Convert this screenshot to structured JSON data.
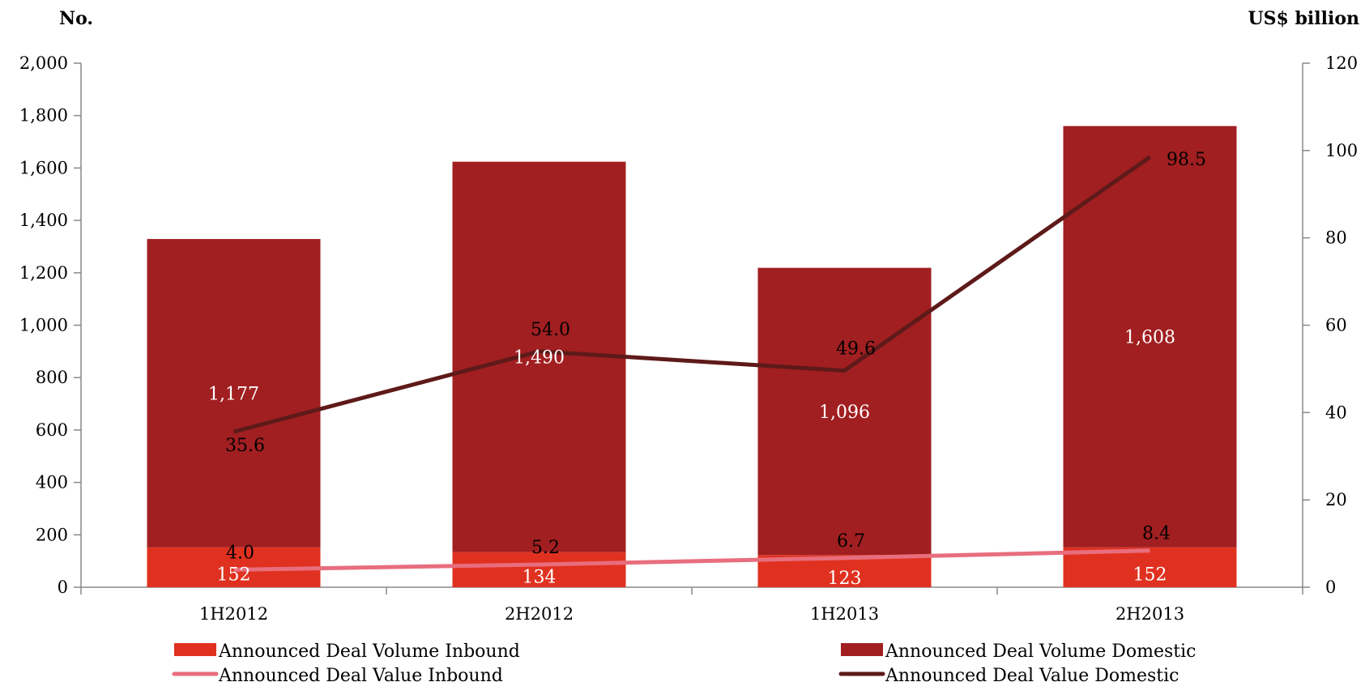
{
  "chart_data": {
    "type": "bar",
    "stacked": true,
    "categories": [
      "1H2012",
      "2H2012",
      "1H2013",
      "2H2013"
    ],
    "y_left": {
      "title": "No.",
      "ylim": [
        0,
        2000
      ],
      "ticks": [
        "0",
        "200",
        "400",
        "600",
        "800",
        "1,000",
        "1,200",
        "1,400",
        "1,600",
        "1,800",
        "2,000"
      ]
    },
    "y_right": {
      "title": "US$ billion",
      "ylim": [
        0,
        120
      ],
      "ticks": [
        "0",
        "20",
        "40",
        "60",
        "80",
        "100",
        "120"
      ]
    },
    "series": [
      {
        "name": "Announced Deal Volume Inbound",
        "type": "bar",
        "axis": "left",
        "color": "#e03120",
        "values": [
          152,
          134,
          123,
          152
        ],
        "labels": [
          "152",
          "134",
          "123",
          "152"
        ]
      },
      {
        "name": "Announced Deal Volume Domestic",
        "type": "bar",
        "axis": "left",
        "color": "#a11f21",
        "values": [
          1177,
          1490,
          1096,
          1608
        ],
        "labels": [
          "1,177",
          "1,490",
          "1,096",
          "1,608"
        ]
      },
      {
        "name": "Announced Deal Value Inbound",
        "type": "line",
        "axis": "right",
        "color": "#e86e7e",
        "values": [
          4.0,
          5.2,
          6.7,
          8.4
        ],
        "labels": [
          "4.0",
          "5.2",
          "6.7",
          "8.4"
        ]
      },
      {
        "name": "Announced Deal Value Domestic",
        "type": "line",
        "axis": "right",
        "color": "#5e1a19",
        "values": [
          35.6,
          54.0,
          49.6,
          98.5
        ],
        "labels": [
          "35.6",
          "54.0",
          "49.6",
          "98.5"
        ]
      }
    ],
    "grid": false,
    "legend_position": "bottom"
  }
}
